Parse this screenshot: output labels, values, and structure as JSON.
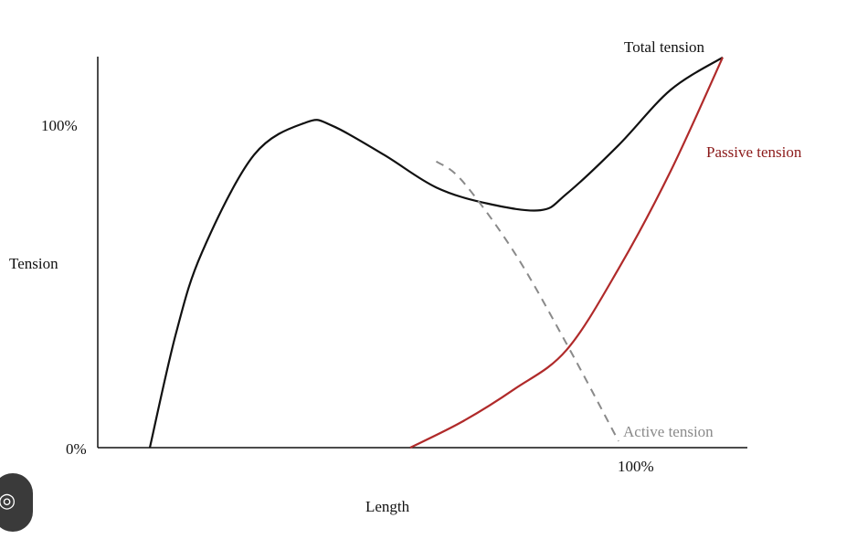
{
  "chart_data": {
    "type": "line",
    "xlabel": "Length",
    "ylabel": "Tension",
    "x_ticks": [
      "100%"
    ],
    "y_ticks": [
      "0%",
      "100%"
    ],
    "xlim": [
      0,
      1.22
    ],
    "ylim": [
      0,
      1.2
    ],
    "grid": false,
    "legend": "inline labels",
    "series": [
      {
        "name": "Total tension",
        "color": "#111111",
        "style": "solid",
        "x": [
          0.1,
          0.15,
          0.2,
          0.3,
          0.4,
          0.45,
          0.55,
          0.65,
          0.75,
          0.85,
          0.9,
          1.0,
          1.1,
          1.2
        ],
        "y": [
          0,
          0.35,
          0.6,
          0.9,
          1.0,
          0.99,
          0.9,
          0.8,
          0.75,
          0.73,
          0.78,
          0.93,
          1.1,
          1.2
        ]
      },
      {
        "name": "Passive tension",
        "color": "#b02a2a",
        "style": "solid",
        "x": [
          0.6,
          0.7,
          0.8,
          0.9,
          1.0,
          1.1,
          1.2
        ],
        "y": [
          0,
          0.08,
          0.18,
          0.3,
          0.55,
          0.85,
          1.2
        ]
      },
      {
        "name": "Active tension",
        "color": "#8a8a8a",
        "style": "dashed",
        "x": [
          0.65,
          0.7,
          0.8,
          0.9,
          1.0
        ],
        "y": [
          0.88,
          0.82,
          0.6,
          0.32,
          0.02
        ]
      }
    ]
  },
  "ui": {
    "badge_icon": "lens-icon"
  }
}
